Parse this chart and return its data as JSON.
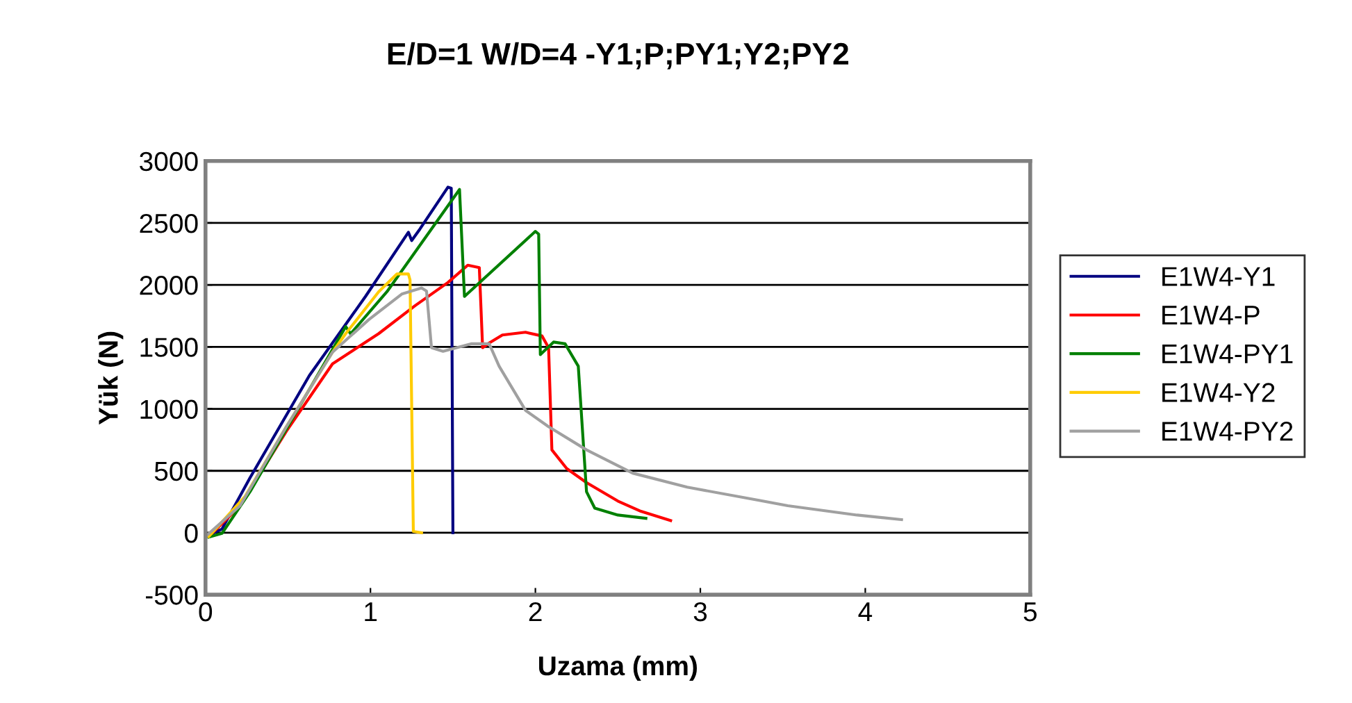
{
  "chart_data": {
    "type": "line",
    "title": "E/D=1 W/D=4 -Y1;P;PY1;Y2;PY2",
    "xlabel": "Uzama (mm)",
    "ylabel": "Yük (N)",
    "xlim": [
      0,
      5
    ],
    "ylim": [
      -500,
      3000
    ],
    "xticks": [
      0,
      1,
      2,
      3,
      4,
      5
    ],
    "yticks": [
      -500,
      0,
      500,
      1000,
      1500,
      2000,
      2500,
      3000
    ],
    "grid": "y",
    "legend": "right",
    "marker": "none",
    "line_style": "solid",
    "series": [
      {
        "name": "E1W4-Y1",
        "color": "#000080",
        "x": [
          0.0,
          0.1,
          0.27,
          0.63,
          0.97,
          1.23,
          1.25,
          1.3,
          1.47,
          1.49,
          1.5
        ],
        "values": [
          -30,
          30,
          444,
          1269,
          1907,
          2425,
          2358,
          2451,
          2789,
          2780,
          0
        ]
      },
      {
        "name": "E1W4-P",
        "color": "#ff0000",
        "x": [
          0.02,
          0.21,
          0.49,
          0.77,
          1.05,
          1.27,
          1.47,
          1.59,
          1.66,
          1.68,
          1.72,
          1.8,
          1.94,
          2.04,
          2.08,
          2.1,
          2.19,
          2.31,
          2.5,
          2.64,
          2.82
        ],
        "values": [
          -30,
          218,
          819,
          1363,
          1607,
          1832,
          2020,
          2159,
          2140,
          1494,
          1531,
          1596,
          1618,
          1588,
          1494,
          669,
          518,
          405,
          256,
          173,
          98
        ]
      },
      {
        "name": "E1W4-PY1",
        "color": "#008000",
        "x": [
          0.02,
          0.1,
          0.27,
          0.85,
          0.88,
          1.1,
          1.54,
          1.57,
          2.0,
          2.02,
          2.03,
          2.11,
          2.18,
          2.26,
          2.31,
          2.36,
          2.5,
          2.67
        ],
        "values": [
          -35,
          -5,
          331,
          1663,
          1606,
          1945,
          2770,
          1907,
          2432,
          2410,
          1438,
          1539,
          1525,
          1344,
          331,
          199,
          143,
          117
        ]
      },
      {
        "name": "E1W4-Y2",
        "color": "#ffcc00",
        "x": [
          0.02,
          0.24,
          0.49,
          0.77,
          0.85,
          1.05,
          1.16,
          1.23,
          1.24,
          1.26,
          1.31
        ],
        "values": [
          -30,
          293,
          856,
          1457,
          1607,
          1945,
          2088,
          2088,
          2040,
          11,
          0
        ]
      },
      {
        "name": "E1W4-PY2",
        "color": "#a0a0a0",
        "x": [
          0.0,
          0.21,
          0.49,
          0.77,
          0.99,
          1.19,
          1.31,
          1.34,
          1.37,
          1.44,
          1.61,
          1.72,
          1.78,
          1.94,
          2.08,
          2.31,
          2.59,
          2.92,
          3.35,
          3.53,
          3.95,
          4.22
        ],
        "values": [
          -30,
          218,
          856,
          1457,
          1720,
          1926,
          1975,
          1950,
          1494,
          1464,
          1525,
          1525,
          1344,
          988,
          856,
          669,
          481,
          368,
          263,
          218,
          143,
          106
        ]
      }
    ]
  }
}
